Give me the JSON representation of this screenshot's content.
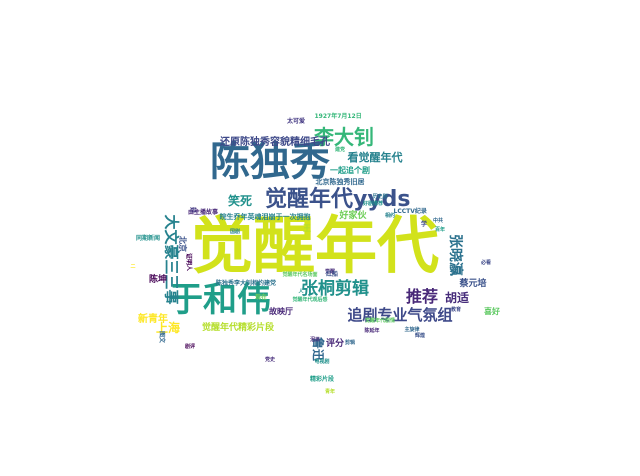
{
  "words": [
    {
      "text": "觉醒年代",
      "color": "#d2e21b"
    },
    {
      "text": "陈独秀",
      "color": "#31688e"
    },
    {
      "text": "于和伟",
      "color": "#1f9e89"
    },
    {
      "text": "觉醒年代yyds",
      "color": "#3b528b"
    },
    {
      "text": "李大钊",
      "color": "#35b779"
    },
    {
      "text": "张桐剪辑",
      "color": "#21918c"
    },
    {
      "text": "推荐",
      "color": "#482878"
    },
    {
      "text": "追剧专业气氛组",
      "color": "#3e4989"
    },
    {
      "text": "大文豪三三事",
      "color": "#26828e"
    },
    {
      "text": "张晓瀛",
      "color": "#2c728e"
    },
    {
      "text": "上海",
      "color": "#fde725"
    },
    {
      "text": "胡适",
      "color": "#472d7b"
    },
    {
      "text": "还原陈独秀容貌精细毛孔",
      "color": "#3e4989"
    },
    {
      "text": "看觉醒年代",
      "color": "#26828e"
    },
    {
      "text": "笑死",
      "color": "#21918c"
    },
    {
      "text": "觉醒年代精彩片段",
      "color": "#b5de2b"
    },
    {
      "text": "鲁迅",
      "color": "#31688e"
    },
    {
      "text": "陈坤",
      "color": "#440154"
    },
    {
      "text": "新青年",
      "color": "#fde725"
    },
    {
      "text": "蔡元培",
      "color": "#3b528b"
    },
    {
      "text": "评分",
      "color": "#482878"
    },
    {
      "text": "好家伙",
      "color": "#6ece58"
    },
    {
      "text": "一起追个剧",
      "color": "#1f9e89"
    },
    {
      "text": "北京陈独秀旧居",
      "color": "#31688e"
    },
    {
      "text": "故映厅",
      "color": "#482878"
    },
    {
      "text": "喜好",
      "color": "#5ec962"
    },
    {
      "text": "王",
      "color": "#b5de2b"
    },
    {
      "text": "北京",
      "color": "#3b528b"
    },
    {
      "text": "1927年7月12日",
      "color": "#35b779"
    },
    {
      "text": "太可爱",
      "color": "#443983"
    },
    {
      "text": "LCCTV纪录",
      "color": "#31688e"
    },
    {
      "text": "皖生乔年英魂泪崩于一次拥抱",
      "color": "#26828e"
    },
    {
      "text": "由主播故事",
      "color": "#482878"
    },
    {
      "text": "陈独秀李大钊相约建党",
      "color": "#2c728e"
    },
    {
      "text": "同期新闻",
      "color": "#21918c"
    },
    {
      "text": "证明人",
      "color": "#440154"
    },
    {
      "text": "精彩片段",
      "color": "#1f9e89"
    },
    {
      "text": "现在",
      "color": "#6ece58"
    },
    {
      "text": "二",
      "color": "#fde725"
    },
    {
      "text": "延",
      "color": "#443983"
    },
    {
      "text": "人",
      "color": "#21918c"
    },
    {
      "text": "学",
      "color": "#3e4989"
    },
    {
      "text": "图文",
      "color": "#31688e"
    },
    {
      "text": "觉醒年代观后感",
      "color": "#35b779"
    },
    {
      "text": "觉醒",
      "color": "#472d7b"
    },
    {
      "text": "红船",
      "color": "#3b528b"
    },
    {
      "text": "觉醒年代剧情",
      "color": "#5ec962"
    },
    {
      "text": "陈延年",
      "color": "#482878"
    },
    {
      "text": "中共",
      "color": "#31688e"
    },
    {
      "text": "百年",
      "color": "#1f9e89"
    },
    {
      "text": "相约",
      "color": "#26828e"
    },
    {
      "text": "教育",
      "color": "#3e4989"
    },
    {
      "text": "电视剧",
      "color": "#21918c"
    },
    {
      "text": "党史",
      "color": "#472d7b"
    },
    {
      "text": "建党",
      "color": "#35b779"
    },
    {
      "text": "青年",
      "color": "#b5de2b"
    },
    {
      "text": "主旋律",
      "color": "#31688e"
    },
    {
      "text": "辉煌",
      "color": "#3b528b"
    },
    {
      "text": "历史剧",
      "color": "#2c728e"
    },
    {
      "text": "剧评",
      "color": "#440154"
    },
    {
      "text": "国剧",
      "color": "#26828e"
    },
    {
      "text": "必看",
      "color": "#3e4989"
    },
    {
      "text": "好剧推荐",
      "color": "#21918c"
    },
    {
      "text": "泪目",
      "color": "#482878"
    },
    {
      "text": "觉醒年代名场面",
      "color": "#5ec962"
    },
    {
      "text": "剪辑",
      "color": "#31688e"
    }
  ]
}
